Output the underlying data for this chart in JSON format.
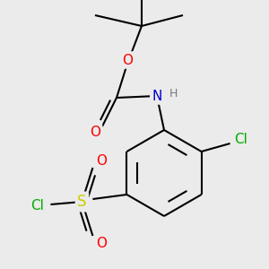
{
  "background_color": "#ebebeb",
  "bond_color": "#000000",
  "bond_width": 1.5,
  "atom_colors": {
    "O": "#ff0000",
    "N": "#0000cc",
    "Cl": "#00aa00",
    "S": "#cccc00",
    "C": "#000000",
    "H": "#777777"
  },
  "font_size": 11,
  "font_size_H": 9
}
